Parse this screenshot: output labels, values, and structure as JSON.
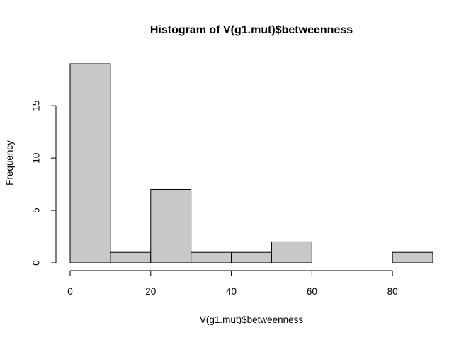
{
  "chart_data": {
    "type": "bar",
    "title": "Histogram of V(g1.mut)$betweenness",
    "xlabel": "V(g1.mut)$betweenness",
    "ylabel": "Frequency",
    "bins": [
      {
        "from": 0,
        "to": 10,
        "count": 19
      },
      {
        "from": 10,
        "to": 20,
        "count": 1
      },
      {
        "from": 20,
        "to": 30,
        "count": 7
      },
      {
        "from": 30,
        "to": 40,
        "count": 1
      },
      {
        "from": 40,
        "to": 50,
        "count": 1
      },
      {
        "from": 50,
        "to": 60,
        "count": 2
      },
      {
        "from": 60,
        "to": 70,
        "count": 0
      },
      {
        "from": 70,
        "to": 80,
        "count": 0
      },
      {
        "from": 80,
        "to": 90,
        "count": 1
      }
    ],
    "x_ticks": [
      0,
      20,
      40,
      60,
      80
    ],
    "y_ticks": [
      0,
      5,
      10,
      15
    ],
    "xlim": [
      0,
      90
    ],
    "ylim": [
      0,
      19
    ],
    "bar_color": "#c8c8c8",
    "grid": false,
    "legend": "none"
  }
}
